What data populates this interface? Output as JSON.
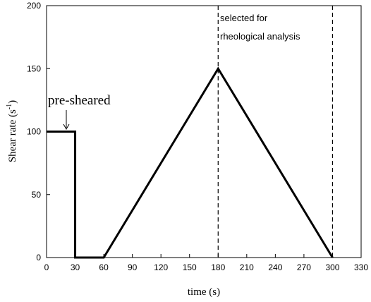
{
  "chart_data": {
    "type": "line",
    "xlabel": "time (s)",
    "ylabel": "Shear rate (s",
    "ylabel_sup": "-1",
    "ylabel_tail": ")",
    "xlim": [
      0,
      330
    ],
    "ylim": [
      0,
      200
    ],
    "x_ticks": [
      0,
      30,
      60,
      90,
      120,
      150,
      180,
      210,
      240,
      270,
      300,
      330
    ],
    "y_ticks": [
      0,
      50,
      100,
      150,
      200
    ],
    "grid": false,
    "series": [
      {
        "x": [
          0,
          30,
          30,
          60,
          180,
          300
        ],
        "y": [
          100,
          100,
          0,
          0,
          150,
          0
        ]
      }
    ],
    "vlines": [
      180,
      300
    ],
    "annotations": {
      "pre_sheared": "pre-sheared",
      "selected_line1": "selected for",
      "selected_line2": "rheological analysis"
    }
  }
}
